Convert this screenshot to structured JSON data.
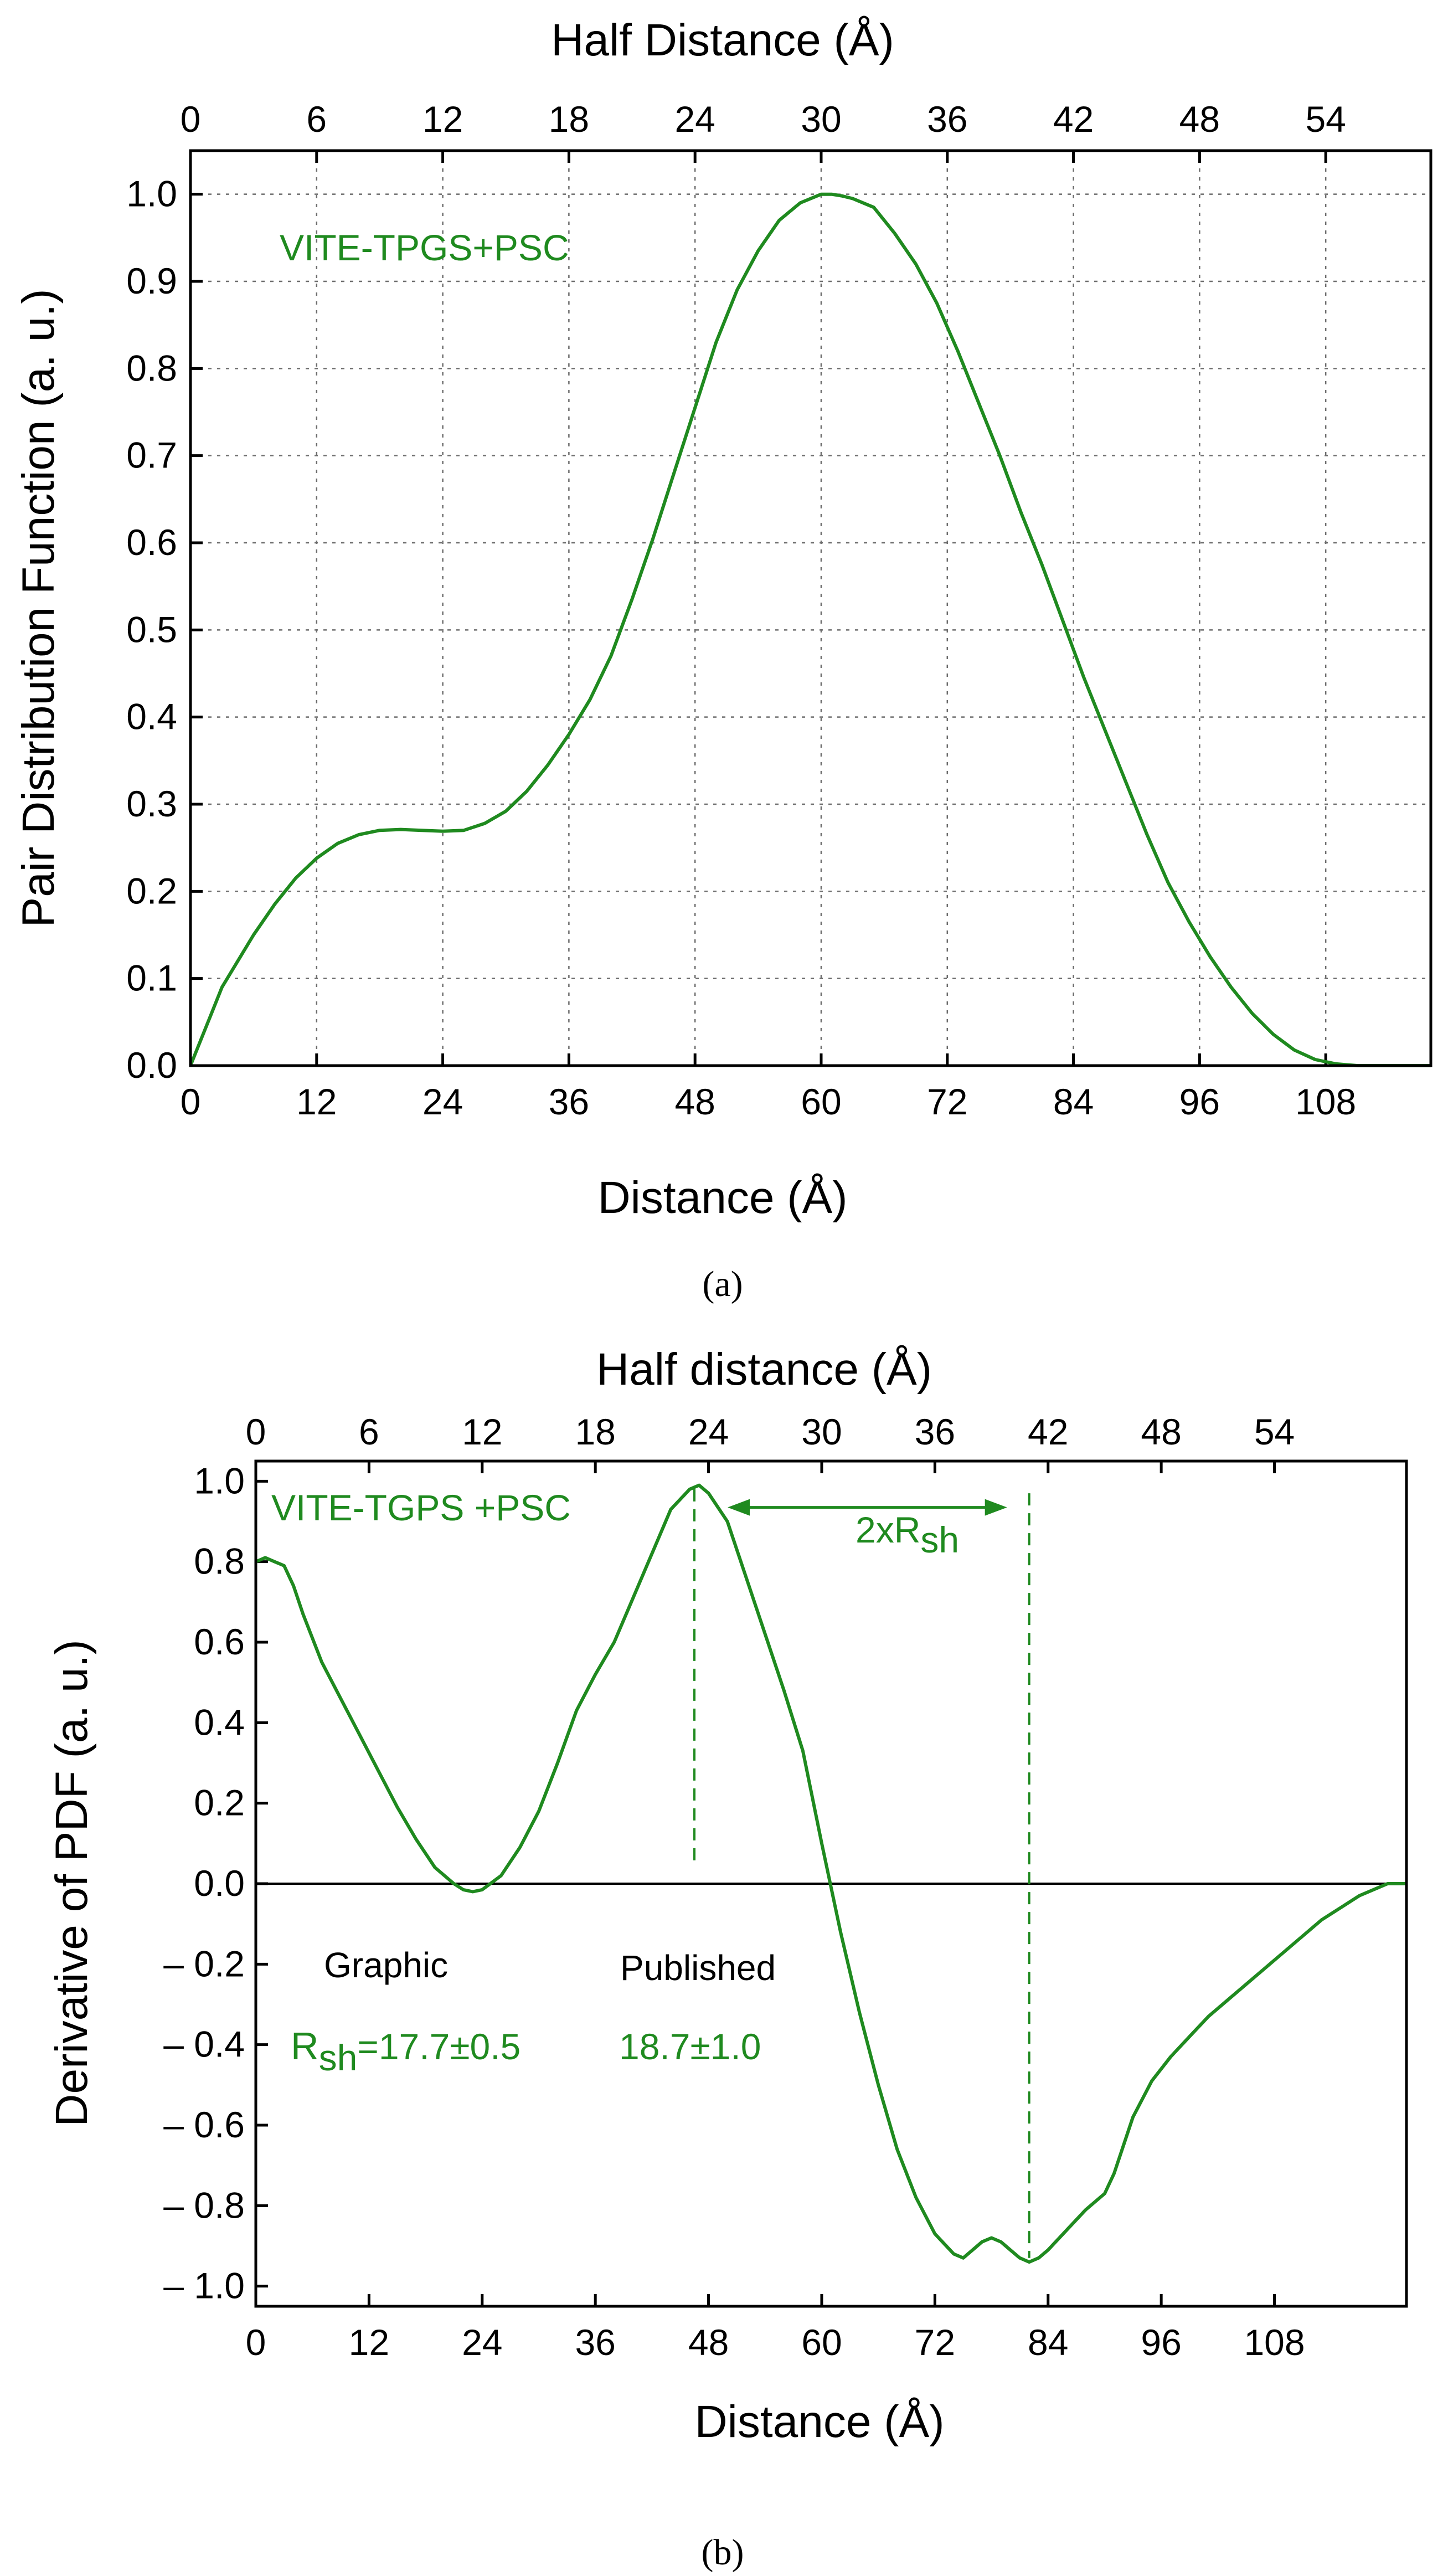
{
  "chart_data": [
    {
      "id": "a",
      "type": "line",
      "caption": "(a)",
      "title": "",
      "xlabel": "Distance (Å)",
      "ylabel": "Pair Distribution Function (a. u.)",
      "top_xlabel": "Half Distance (Å)",
      "xlim": [
        0,
        118
      ],
      "ylim": [
        0,
        1.05
      ],
      "grid": true,
      "x_ticks": [
        "0",
        "12",
        "24",
        "36",
        "48",
        "60",
        "72",
        "84",
        "96",
        "108"
      ],
      "top_ticks": [
        "0",
        "6",
        "12",
        "18",
        "24",
        "30",
        "36",
        "42",
        "48",
        "54"
      ],
      "y_ticks": [
        "0.0",
        "0.1",
        "0.2",
        "0.3",
        "0.4",
        "0.5",
        "0.6",
        "0.7",
        "0.8",
        "0.9",
        "1.0"
      ],
      "annotation": "VITE-TPGS+PSC",
      "series": [
        {
          "name": "VITE-TPGS+PSC",
          "color": "#1f8a1f",
          "x": [
            0,
            1,
            2,
            3,
            4,
            6,
            8,
            10,
            12,
            14,
            16,
            18,
            20,
            22,
            24,
            26,
            28,
            30,
            32,
            34,
            36,
            38,
            40,
            42,
            44,
            46,
            48,
            50,
            52,
            54,
            56,
            58,
            60,
            61,
            62,
            63,
            65,
            67,
            69,
            71,
            73,
            75,
            77,
            79,
            81,
            83,
            85,
            87,
            89,
            91,
            93,
            95,
            97,
            99,
            101,
            103,
            105,
            107,
            109,
            111,
            113,
            115,
            117,
            118
          ],
          "y": [
            0.0,
            0.03,
            0.06,
            0.09,
            0.11,
            0.15,
            0.185,
            0.215,
            0.238,
            0.255,
            0.265,
            0.27,
            0.271,
            0.27,
            0.269,
            0.27,
            0.278,
            0.292,
            0.315,
            0.345,
            0.38,
            0.42,
            0.47,
            0.535,
            0.605,
            0.68,
            0.755,
            0.83,
            0.89,
            0.935,
            0.97,
            0.99,
            1.0,
            1.0,
            0.998,
            0.995,
            0.985,
            0.955,
            0.92,
            0.875,
            0.82,
            0.76,
            0.7,
            0.635,
            0.575,
            0.51,
            0.445,
            0.385,
            0.325,
            0.265,
            0.21,
            0.165,
            0.125,
            0.09,
            0.06,
            0.036,
            0.018,
            0.007,
            0.002,
            0.0,
            0.0,
            0.0,
            0.0,
            0.0
          ]
        }
      ]
    },
    {
      "id": "b",
      "type": "line",
      "caption": "(b)",
      "title": "",
      "xlabel": "Distance (Å)",
      "ylabel": "Derivative of  PDF (a. u.)",
      "top_xlabel": "Half distance (Å)",
      "xlim": [
        0,
        122
      ],
      "ylim": [
        -1.05,
        1.05
      ],
      "grid": false,
      "x_ticks": [
        "0",
        "12",
        "24",
        "36",
        "48",
        "60",
        "72",
        "84",
        "96",
        "108"
      ],
      "top_ticks": [
        "0",
        "6",
        "12",
        "18",
        "24",
        "30",
        "36",
        "42",
        "48",
        "54"
      ],
      "y_ticks": [
        "1.0",
        "0.8",
        "0.6",
        "0.4",
        "0.2",
        "0.0",
        "– 0.2",
        "– 0.4",
        "– 0.6",
        "– 0.8",
        "– 1.0"
      ],
      "annotation": "VITE-TGPS +PSC",
      "arrow_label_main": "2xR",
      "arrow_label_sub": "sh",
      "vertical_lines_x": [
        46.5,
        82
      ],
      "table": {
        "graphic_header": "Graphic",
        "published_header": "Published",
        "r_symbol": "R",
        "r_sub": "sh",
        "graphic_value": "=17.7±0.5",
        "published_value": "18.7±1.0"
      },
      "series": [
        {
          "name": "VITE-TGPS +PSC",
          "color": "#1f8a1f",
          "x": [
            0,
            1,
            2,
            3,
            4,
            5,
            7,
            9,
            11,
            13,
            15,
            17,
            19,
            21,
            22,
            23,
            24,
            26,
            28,
            30,
            32,
            34,
            36,
            38,
            40,
            42,
            44,
            46,
            47,
            48,
            50,
            52,
            54,
            56,
            58,
            60,
            62,
            64,
            66,
            68,
            70,
            72,
            74,
            75,
            76,
            77,
            78,
            79,
            80,
            81,
            82,
            83,
            84,
            86,
            88,
            90,
            91,
            93,
            95,
            97,
            99,
            101,
            103,
            105,
            107,
            109,
            111,
            113,
            115,
            117,
            119,
            120,
            121,
            122
          ],
          "y": [
            0.8,
            0.81,
            0.8,
            0.79,
            0.74,
            0.67,
            0.55,
            0.46,
            0.37,
            0.28,
            0.19,
            0.11,
            0.04,
            0.0,
            -0.015,
            -0.02,
            -0.015,
            0.02,
            0.09,
            0.18,
            0.3,
            0.43,
            0.52,
            0.6,
            0.71,
            0.82,
            0.93,
            0.98,
            0.99,
            0.97,
            0.9,
            0.76,
            0.62,
            0.48,
            0.33,
            0.1,
            -0.12,
            -0.32,
            -0.5,
            -0.66,
            -0.78,
            -0.87,
            -0.92,
            -0.93,
            -0.91,
            -0.89,
            -0.88,
            -0.89,
            -0.91,
            -0.93,
            -0.94,
            -0.93,
            -0.91,
            -0.86,
            -0.81,
            -0.77,
            -0.72,
            -0.58,
            -0.49,
            -0.43,
            -0.38,
            -0.33,
            -0.29,
            -0.25,
            -0.21,
            -0.17,
            -0.13,
            -0.09,
            -0.06,
            -0.03,
            -0.01,
            0.0,
            0.0,
            0.0
          ]
        }
      ]
    }
  ]
}
